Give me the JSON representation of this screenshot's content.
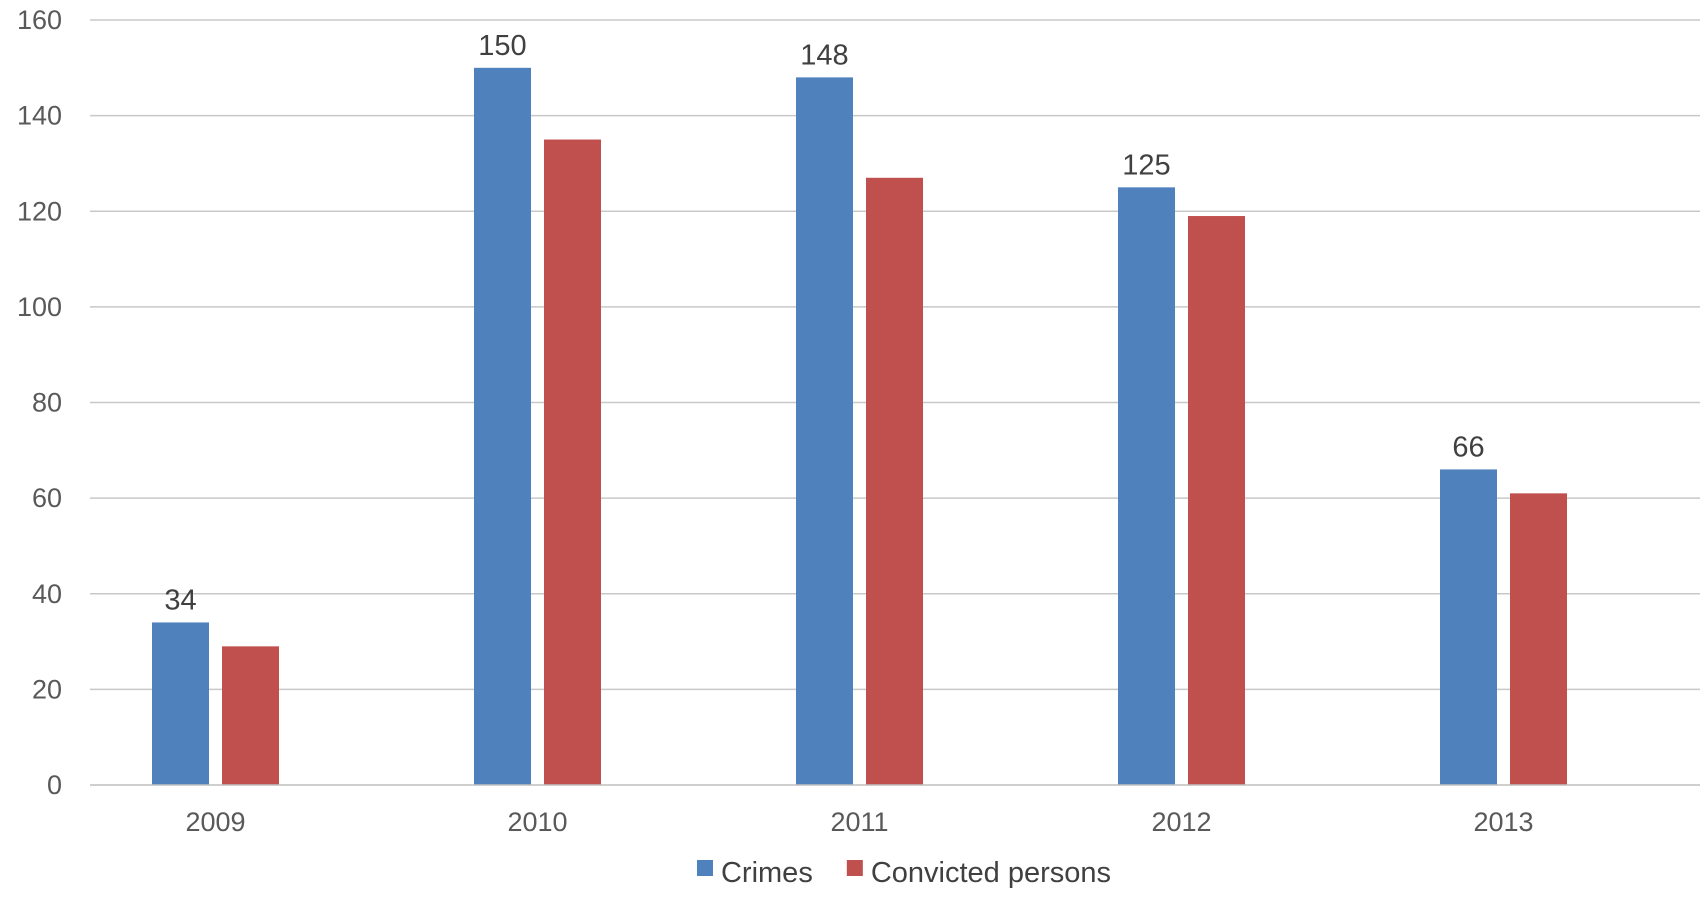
{
  "chart_data": {
    "type": "bar",
    "title": "",
    "xlabel": "",
    "ylabel": "",
    "categories": [
      "2009",
      "2010",
      "2011",
      "2012",
      "2013"
    ],
    "series": [
      {
        "name": "Crimes",
        "color": "#4f81bd",
        "values": [
          34,
          150,
          148,
          125,
          66
        ],
        "show_data_labels": true
      },
      {
        "name": "Convicted persons",
        "color": "#c0504d",
        "values": [
          29,
          135,
          127,
          119,
          61
        ],
        "show_data_labels": false
      }
    ],
    "ylim": [
      0,
      160
    ],
    "yticks": [
      0,
      20,
      40,
      60,
      80,
      100,
      120,
      140,
      160
    ],
    "grid": true,
    "legend_position": "bottom"
  }
}
